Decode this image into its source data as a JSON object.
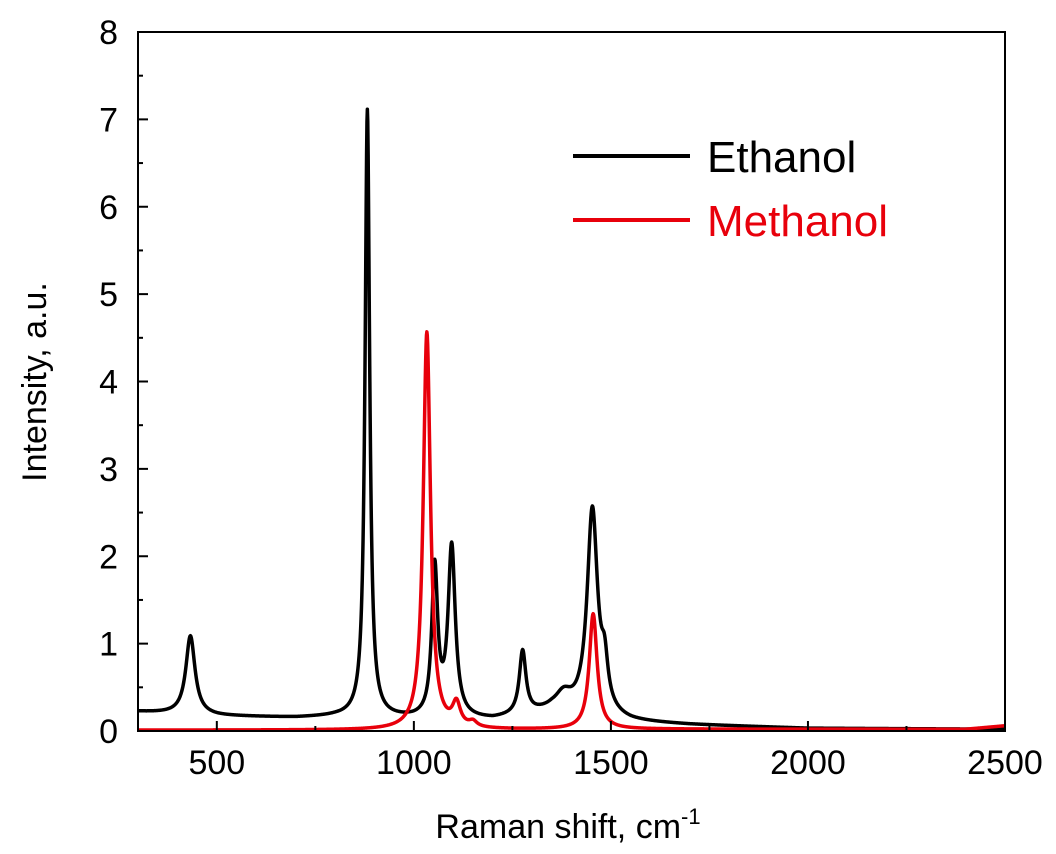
{
  "chart_data": {
    "type": "line",
    "title": "",
    "xlabel": "Raman shift, cm",
    "xlabel_sup": "-1",
    "ylabel": "Intensity, a.u.",
    "xlim": [
      300,
      2500
    ],
    "ylim": [
      0,
      8
    ],
    "x_ticks": [
      500,
      1000,
      1500,
      2000,
      2500
    ],
    "x_tick_labels": [
      "500",
      "1000",
      "1500",
      "2000",
      "2500"
    ],
    "y_ticks": [
      0,
      1,
      2,
      3,
      4,
      5,
      6,
      7,
      8
    ],
    "y_tick_labels": [
      "0",
      "1",
      "2",
      "3",
      "4",
      "5",
      "6",
      "7",
      "8"
    ],
    "legend_position": "top-right",
    "grid": false,
    "series": [
      {
        "name": "Ethanol",
        "color": "#000000",
        "baseline": [
          [
            300,
            0.22
          ],
          [
            500,
            0.17
          ],
          [
            700,
            0.15
          ],
          [
            800,
            0.16
          ],
          [
            900,
            0.15
          ],
          [
            1000,
            0.13
          ],
          [
            1200,
            0.12
          ],
          [
            1350,
            0.22
          ],
          [
            1550,
            0.1
          ],
          [
            1700,
            0.07
          ],
          [
            2000,
            0.03
          ],
          [
            2500,
            0.02
          ]
        ],
        "peaks": [
          {
            "x": 433,
            "height": 0.9,
            "width": 14
          },
          {
            "x": 882,
            "height": 6.95,
            "width": 7
          },
          {
            "x": 1053,
            "height": 1.7,
            "width": 9
          },
          {
            "x": 1096,
            "height": 1.95,
            "width": 11
          },
          {
            "x": 1276,
            "height": 0.72,
            "width": 10
          },
          {
            "x": 1453,
            "height": 2.35,
            "width": 16
          },
          {
            "x": 1484,
            "height": 0.45,
            "width": 10
          },
          {
            "x": 1380,
            "height": 0.18,
            "width": 25
          }
        ]
      },
      {
        "name": "Methanol",
        "color": "#e8000b",
        "baseline": [
          [
            300,
            0.01
          ],
          [
            1000,
            0.01
          ],
          [
            1500,
            0.02
          ],
          [
            2000,
            0.02
          ],
          [
            2400,
            0.02
          ],
          [
            2500,
            0.06
          ]
        ],
        "peaks": [
          {
            "x": 1033,
            "height": 4.55,
            "width": 11
          },
          {
            "x": 1108,
            "height": 0.26,
            "width": 12
          },
          {
            "x": 1150,
            "height": 0.06,
            "width": 12
          },
          {
            "x": 1455,
            "height": 1.32,
            "width": 12
          }
        ]
      }
    ]
  }
}
